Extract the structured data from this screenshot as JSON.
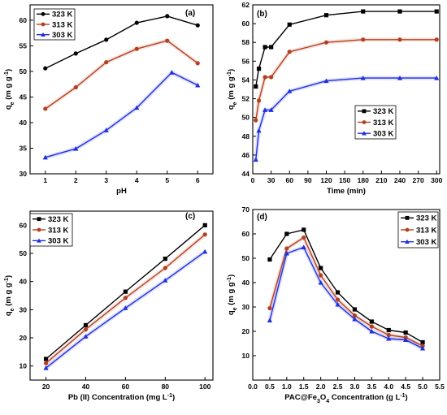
{
  "chart_data": [
    {
      "type": "line",
      "panel_label": "(a)",
      "xlabel": "pH",
      "ylabel": "q",
      "ylabel_sub": "e",
      "ylabel_unit": "(m g g",
      "ylabel_sup": "-1",
      "ylabel_close": ")",
      "xlim": [
        0.5,
        6.5
      ],
      "ylim": [
        30,
        63
      ],
      "xticks": [
        1,
        2,
        3,
        4,
        5,
        6
      ],
      "yticks": [
        30,
        35,
        40,
        45,
        50,
        55,
        60
      ],
      "legend_position": "top-left",
      "series": [
        {
          "name": "323 K",
          "color": "#000000",
          "marker": "circle",
          "x": [
            1,
            2,
            3,
            4,
            5,
            6
          ],
          "y": [
            50.6,
            53.5,
            56.2,
            59.5,
            60.8,
            59.0
          ]
        },
        {
          "name": "313 K",
          "color": "#b5401f",
          "marker": "circle",
          "x": [
            1,
            2,
            3,
            4,
            5,
            6
          ],
          "y": [
            42.7,
            46.9,
            51.8,
            54.4,
            56.0,
            51.6
          ]
        },
        {
          "name": "303 K",
          "color": "#1f2ee0",
          "marker": "triangle",
          "x": [
            1,
            2,
            3,
            4,
            5.15,
            6
          ],
          "y": [
            33.2,
            34.9,
            38.5,
            42.9,
            49.8,
            47.3
          ]
        }
      ]
    },
    {
      "type": "line",
      "panel_label": "(b)",
      "xlabel": "Time (min)",
      "ylabel": "q",
      "ylabel_sub": "e",
      "ylabel_unit": "(m g g",
      "ylabel_sup": "-1",
      "ylabel_close": ")",
      "xlim": [
        0,
        305
      ],
      "ylim": [
        44,
        62
      ],
      "xticks": [
        0,
        30,
        60,
        90,
        120,
        150,
        180,
        210,
        240,
        270,
        300
      ],
      "yticks": [
        44,
        46,
        48,
        50,
        52,
        54,
        56,
        58,
        60,
        62
      ],
      "legend_position": "bottom-right",
      "series": [
        {
          "name": "323 K",
          "color": "#000000",
          "marker": "square",
          "x": [
            5,
            10,
            20,
            30,
            60,
            120,
            180,
            240,
            300
          ],
          "y": [
            53.3,
            55.2,
            57.5,
            57.5,
            59.9,
            60.9,
            61.3,
            61.3,
            61.3
          ]
        },
        {
          "name": "313 K",
          "color": "#b5401f",
          "marker": "circle",
          "x": [
            5,
            10,
            20,
            30,
            60,
            120,
            180,
            240,
            300
          ],
          "y": [
            49.7,
            51.8,
            54.3,
            54.3,
            57.0,
            58.0,
            58.3,
            58.3,
            58.3
          ]
        },
        {
          "name": "303 K",
          "color": "#1f2ee0",
          "marker": "triangle",
          "x": [
            5,
            10,
            20,
            30,
            60,
            120,
            180,
            240,
            300
          ],
          "y": [
            45.5,
            48.6,
            50.8,
            50.8,
            52.8,
            53.9,
            54.2,
            54.2,
            54.2
          ]
        }
      ]
    },
    {
      "type": "line",
      "panel_label": "(c)",
      "xlabel": "Pb (II) Concentration (mg L",
      "xlabel_sup": "-1",
      "xlabel_close": ")",
      "ylabel": "q",
      "ylabel_sub": "e",
      "ylabel_unit": "(m g g",
      "ylabel_sup": "-1",
      "ylabel_close": ")",
      "xlim": [
        12,
        104
      ],
      "ylim": [
        5,
        65
      ],
      "xticks": [
        20,
        40,
        60,
        80,
        100
      ],
      "yticks": [
        10,
        20,
        30,
        40,
        50,
        60
      ],
      "legend_position": "top-left",
      "series": [
        {
          "name": "323 K",
          "color": "#000000",
          "marker": "square",
          "x": [
            20,
            40,
            60,
            80,
            100
          ],
          "y": [
            12.5,
            24.5,
            36.4,
            48.1,
            60.0
          ]
        },
        {
          "name": "313 K",
          "color": "#b5401f",
          "marker": "circle",
          "x": [
            20,
            40,
            60,
            80,
            100
          ],
          "y": [
            11.0,
            23.0,
            34.2,
            44.8,
            56.7
          ]
        },
        {
          "name": "303 K",
          "color": "#1f2ee0",
          "marker": "triangle",
          "x": [
            20,
            40,
            60,
            80,
            100
          ],
          "y": [
            9.3,
            20.5,
            30.6,
            40.4,
            50.6
          ]
        }
      ]
    },
    {
      "type": "line",
      "panel_label": "(d)",
      "xlabel": "PAC@Fe",
      "xlabel_sub": "3",
      "xlabel_mid": "O",
      "xlabel_sub2": "4",
      "xlabel_rest": " Concentration (g L",
      "xlabel_sup": "-1",
      "xlabel_close": ")",
      "ylabel": "q",
      "ylabel_sub": "e",
      "ylabel_unit": "(m g g",
      "ylabel_sup": "-1",
      "ylabel_close": ")",
      "xlim": [
        0,
        5.5
      ],
      "ylim": [
        0,
        70
      ],
      "xticks": [
        0.0,
        0.5,
        1.0,
        1.5,
        2.0,
        2.5,
        3.0,
        3.5,
        4.0,
        4.5,
        5.0,
        5.5
      ],
      "yticks": [
        10,
        20,
        30,
        40,
        50,
        60,
        70
      ],
      "legend_position": "top-right",
      "series": [
        {
          "name": "323 K",
          "color": "#000000",
          "marker": "square",
          "x": [
            0.5,
            1.0,
            1.5,
            2.0,
            2.5,
            3.0,
            3.5,
            4.0,
            4.5,
            5.0
          ],
          "y": [
            49.5,
            60.0,
            61.7,
            46.0,
            36.0,
            29.0,
            24.0,
            20.5,
            19.5,
            15.5
          ]
        },
        {
          "name": "313 K",
          "color": "#b5401f",
          "marker": "circle",
          "x": [
            0.5,
            1.0,
            1.5,
            2.0,
            2.5,
            3.0,
            3.5,
            4.0,
            4.5,
            5.0
          ],
          "y": [
            29.5,
            54.0,
            58.5,
            43.0,
            33.0,
            26.5,
            22.0,
            18.5,
            17.5,
            14.0
          ]
        },
        {
          "name": "303 K",
          "color": "#1f2ee0",
          "marker": "triangle",
          "x": [
            0.5,
            1.0,
            1.5,
            2.0,
            2.5,
            3.0,
            3.5,
            4.0,
            4.5,
            5.0
          ],
          "y": [
            24.5,
            52.0,
            54.5,
            40.0,
            31.0,
            25.0,
            20.0,
            17.0,
            16.5,
            13.0
          ]
        }
      ]
    }
  ]
}
